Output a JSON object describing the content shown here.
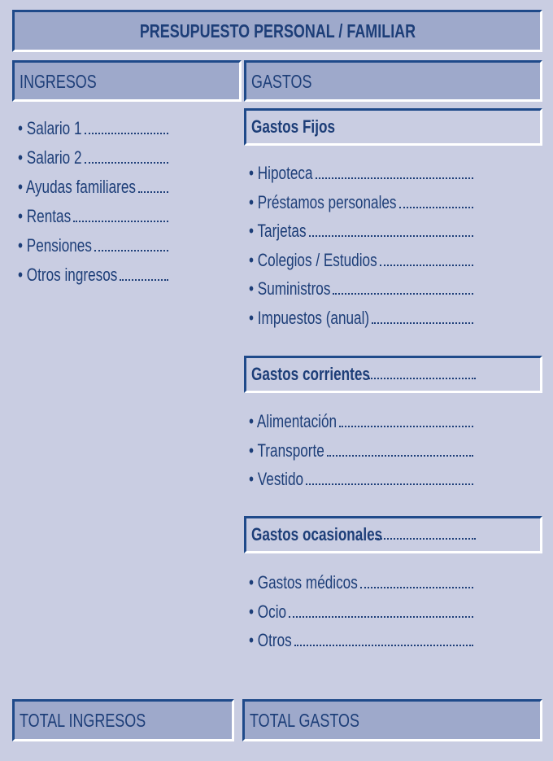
{
  "title": "PRESUPUESTO PERSONAL / FAMILIAR",
  "ingresos": {
    "header": "INGRESOS",
    "items": [
      "• Salario 1",
      "• Salario 2",
      "• Ayudas familiares",
      "• Rentas",
      "• Pensiones",
      "• Otros ingresos"
    ]
  },
  "gastos": {
    "header": "GASTOS",
    "fijos": {
      "header": "Gastos Fijos",
      "items": [
        "• Hipoteca",
        "• Préstamos personales",
        "• Tarjetas",
        "• Colegios / Estudios",
        "• Suministros",
        "• Impuestos (anual)"
      ]
    },
    "corrientes": {
      "header": "Gastos corrientes",
      "items": [
        "• Alimentación",
        "• Transporte",
        "• Vestido"
      ]
    },
    "ocasionales": {
      "header": "Gastos ocasionales",
      "items": [
        "• Gastos médicos",
        "• Ocio",
        "• Otros"
      ]
    }
  },
  "totals": {
    "ingresos": "TOTAL INGRESOS",
    "gastos": "TOTAL GASTOS"
  },
  "colors": {
    "background": "#c9cde2",
    "header_fill": "#9ea9cb",
    "text": "#1d3e78",
    "border": "#1f4a8a"
  }
}
